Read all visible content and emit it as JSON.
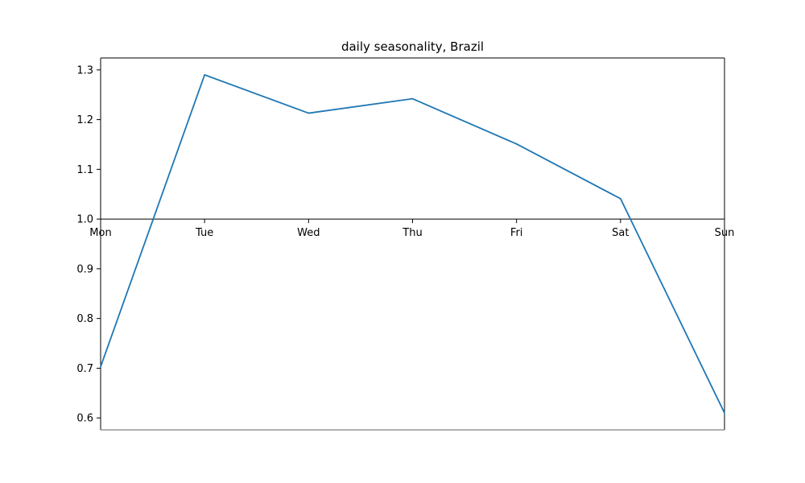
{
  "chart_data": {
    "type": "line",
    "title": "daily seasonality, Brazil",
    "xlabel": "",
    "ylabel": "",
    "categories": [
      "Mon",
      "Tue",
      "Wed",
      "Thu",
      "Fri",
      "Sat",
      "Sun"
    ],
    "series": [
      {
        "values": [
          0.703,
          1.29,
          1.213,
          1.242,
          1.151,
          1.041,
          0.61
        ],
        "color": "#1f77b4"
      }
    ],
    "yticks": [
      "0.6",
      "0.7",
      "0.8",
      "0.9",
      "1.0",
      "1.1",
      "1.2",
      "1.3"
    ],
    "ytick_values": [
      0.6,
      0.7,
      0.8,
      0.9,
      1.0,
      1.1,
      1.2,
      1.3
    ],
    "ylim": [
      0.576,
      1.324
    ],
    "x_axis_at": 1.0,
    "grid": false,
    "colors": {
      "line": "#1f77b4",
      "axis": "#000000",
      "bottom_spine": "#808080"
    }
  }
}
